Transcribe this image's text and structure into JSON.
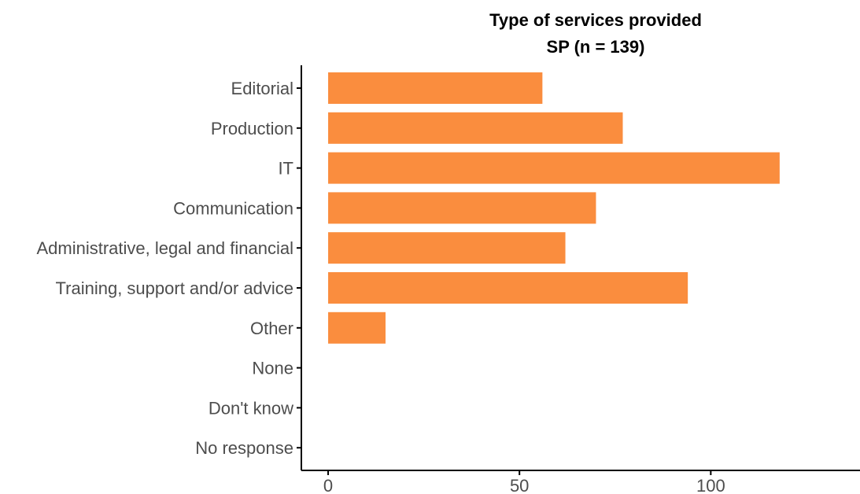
{
  "chart_data": {
    "type": "bar",
    "orientation": "horizontal",
    "title": "Type of services provided",
    "subtitle": "SP (n = 139)",
    "categories": [
      "Editorial",
      "Production",
      "IT",
      "Communication",
      "Administrative, legal and financial",
      "Training, support and/or advice",
      "Other",
      "None",
      "Don't know",
      "No response"
    ],
    "values": [
      56,
      77,
      118,
      70,
      62,
      94,
      15,
      0,
      0,
      0
    ],
    "xlabel": "",
    "ylabel": "",
    "xlim": [
      -7,
      139
    ],
    "xticks": [
      0,
      50,
      100
    ],
    "bar_color": "#fa8d3e",
    "grid": false,
    "legend": "none"
  }
}
